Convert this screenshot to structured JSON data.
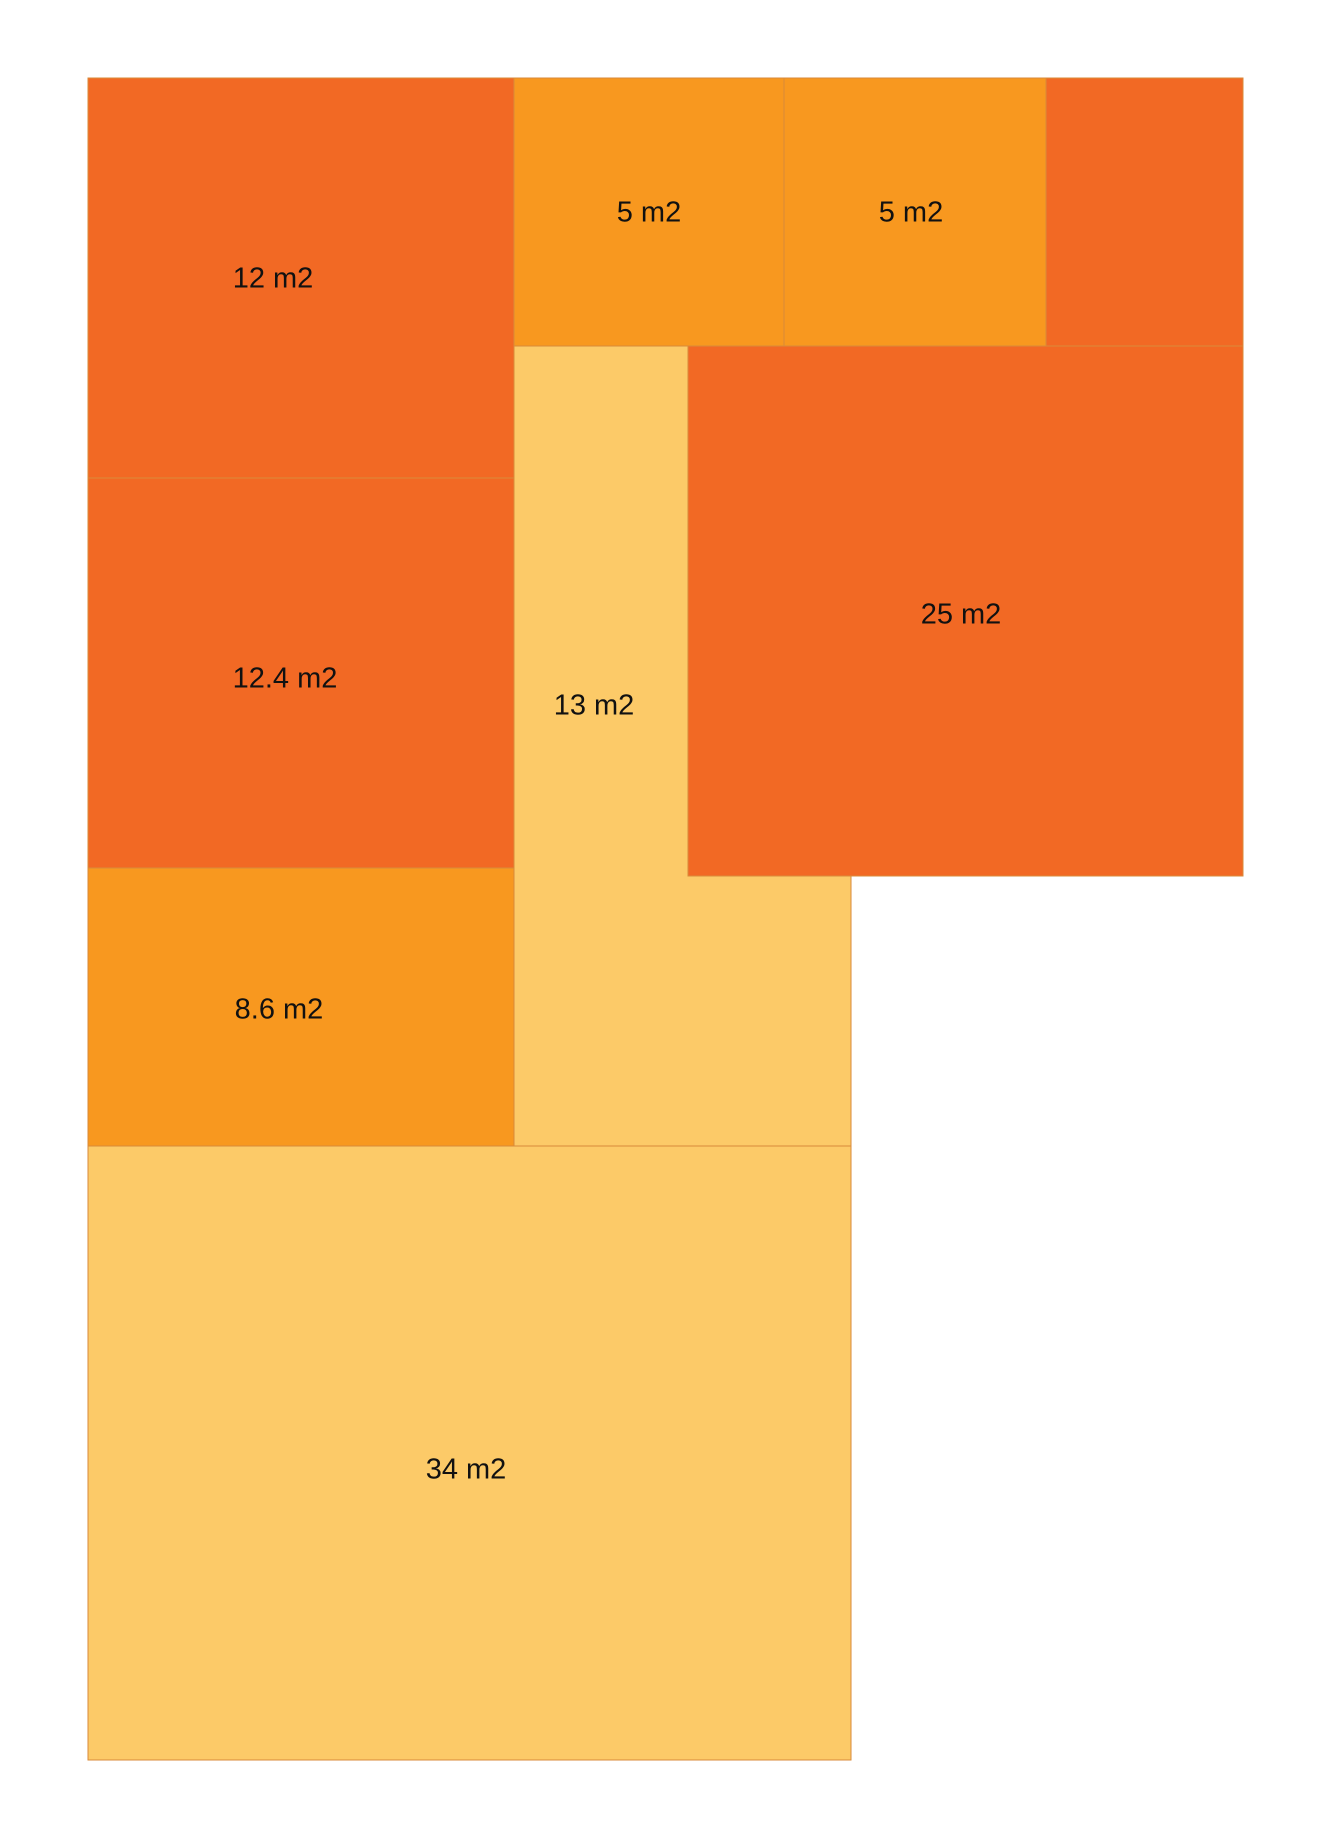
{
  "palette": {
    "dark": "#f26924",
    "medium": "#f8981f",
    "light": "#fcca68",
    "border": "#d98a3a"
  },
  "rooms": [
    {
      "id": "room-12",
      "label": "12 m2",
      "area": 12,
      "shade": "dark"
    },
    {
      "id": "room-5-a",
      "label": "5 m2",
      "area": 5,
      "shade": "medium"
    },
    {
      "id": "room-5-b",
      "label": "5 m2",
      "area": 5,
      "shade": "medium"
    },
    {
      "id": "room-top-right",
      "label": "",
      "shade": "dark"
    },
    {
      "id": "room-25",
      "label": "25 m2",
      "area": 25,
      "shade": "dark"
    },
    {
      "id": "room-12-4",
      "label": "12.4 m2",
      "area": 12.4,
      "shade": "dark"
    },
    {
      "id": "room-13",
      "label": "13 m2",
      "area": 13,
      "shade": "light"
    },
    {
      "id": "room-8-6",
      "label": "8.6 m2",
      "area": 8.6,
      "shade": "medium"
    },
    {
      "id": "room-34",
      "label": "34 m2",
      "area": 34,
      "shade": "light"
    }
  ]
}
